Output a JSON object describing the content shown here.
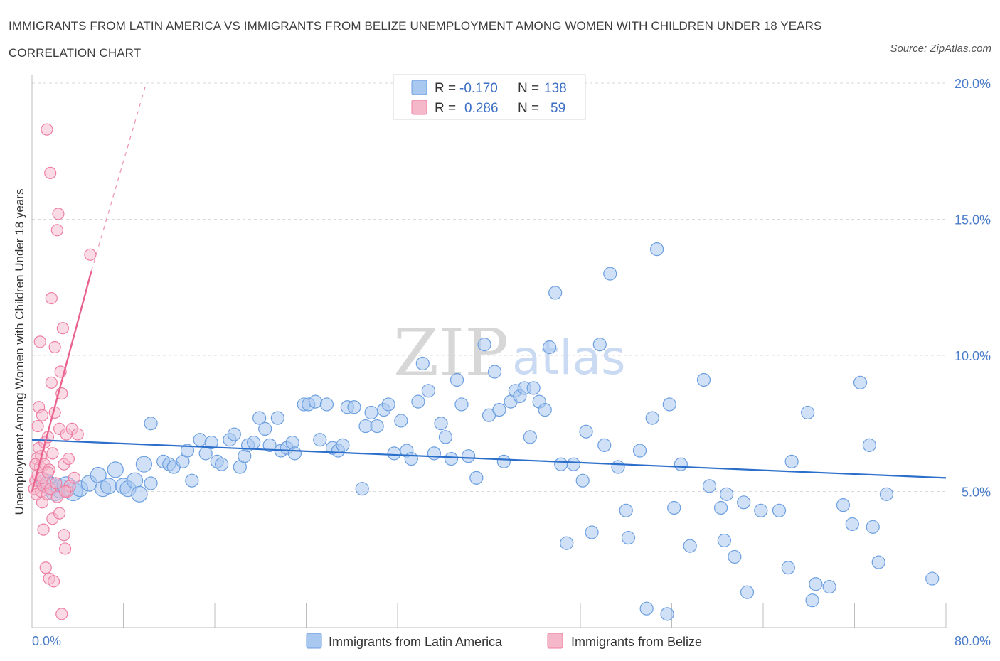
{
  "title": "IMMIGRANTS FROM LATIN AMERICA VS IMMIGRANTS FROM BELIZE UNEMPLOYMENT AMONG WOMEN WITH CHILDREN UNDER 18 YEARS CORRELATION CHART",
  "source": "Source: ZipAtlas.com",
  "watermark": {
    "zip": "ZIP",
    "atlas": "atlas"
  },
  "legend": {
    "rows": [
      {
        "r_label": "R =",
        "r_value": "-0.170",
        "n_label": "N =",
        "n_value": "138",
        "color": "#a9c8f0"
      },
      {
        "r_label": "R =",
        "r_value": "0.286",
        "n_label": "N =",
        "n_value": "59",
        "color": "#f5b8cb"
      }
    ]
  },
  "bottom_legend": [
    "Immigrants from Latin America",
    "Immigrants from Belize"
  ],
  "colors": {
    "blue_fill": "#a9c8f0",
    "blue_stroke": "#6c9fe0",
    "blue_line": "#2c6fcb",
    "pink_fill": "#f5b8cb",
    "pink_stroke": "#ee7fa2",
    "pink_line": "#e8628d",
    "grid": "#d9d9d9",
    "axis_text": "#4a7cc9"
  },
  "chart_data": {
    "type": "scatter",
    "title": "IMMIGRANTS FROM LATIN AMERICA VS IMMIGRANTS FROM BELIZE UNEMPLOYMENT AMONG WOMEN WITH CHILDREN UNDER 18 YEARS CORRELATION CHART",
    "xlabel": "",
    "ylabel": "Unemployment Among Women with Children Under 18 years",
    "xlim": [
      0,
      80
    ],
    "ylim": [
      0,
      20
    ],
    "x_tick_labels": [
      "0.0%",
      "80.0%"
    ],
    "y_ticks": [
      5,
      10,
      15,
      20
    ],
    "y_tick_labels": [
      "5.0%",
      "10.0%",
      "15.0%",
      "20.0%"
    ],
    "grid": true,
    "legend_position": "top-center",
    "series": [
      {
        "name": "Immigrants from Latin America",
        "R": -0.17,
        "N": 138,
        "trend": {
          "x": [
            0,
            80
          ],
          "y": [
            6.9,
            5.5
          ],
          "style": "solid"
        },
        "points": [
          [
            1.2,
            5.3
          ],
          [
            1.6,
            5.2
          ],
          [
            2.0,
            5.0
          ],
          [
            2.5,
            5.1
          ],
          [
            3.0,
            5.2
          ],
          [
            3.6,
            5.0
          ],
          [
            4.2,
            5.1
          ],
          [
            5.0,
            5.3
          ],
          [
            5.8,
            5.6
          ],
          [
            6.2,
            5.1
          ],
          [
            6.7,
            5.2
          ],
          [
            7.3,
            5.8
          ],
          [
            8.0,
            5.2
          ],
          [
            8.4,
            5.1
          ],
          [
            9.0,
            5.4
          ],
          [
            9.4,
            4.9
          ],
          [
            9.8,
            6.0
          ],
          [
            10.4,
            5.3
          ],
          [
            10.4,
            7.5
          ],
          [
            11.5,
            6.1
          ],
          [
            12.0,
            6.0
          ],
          [
            12.4,
            5.9
          ],
          [
            13.2,
            6.1
          ],
          [
            13.6,
            6.5
          ],
          [
            14.0,
            5.4
          ],
          [
            14.7,
            6.9
          ],
          [
            15.2,
            6.4
          ],
          [
            15.7,
            6.8
          ],
          [
            16.2,
            6.1
          ],
          [
            16.6,
            6.0
          ],
          [
            17.3,
            6.9
          ],
          [
            17.7,
            7.1
          ],
          [
            18.2,
            5.9
          ],
          [
            18.6,
            6.3
          ],
          [
            18.9,
            6.7
          ],
          [
            19.4,
            6.8
          ],
          [
            19.9,
            7.7
          ],
          [
            20.4,
            7.3
          ],
          [
            20.8,
            6.7
          ],
          [
            21.5,
            7.7
          ],
          [
            21.8,
            6.5
          ],
          [
            22.3,
            6.6
          ],
          [
            22.8,
            6.8
          ],
          [
            23.0,
            6.4
          ],
          [
            23.8,
            8.2
          ],
          [
            24.2,
            8.2
          ],
          [
            24.8,
            8.3
          ],
          [
            25.2,
            6.9
          ],
          [
            25.8,
            8.2
          ],
          [
            26.3,
            6.6
          ],
          [
            26.8,
            6.5
          ],
          [
            27.2,
            6.7
          ],
          [
            27.6,
            8.1
          ],
          [
            28.2,
            8.1
          ],
          [
            28.9,
            5.1
          ],
          [
            29.2,
            7.4
          ],
          [
            29.7,
            7.9
          ],
          [
            30.2,
            7.4
          ],
          [
            30.8,
            8.0
          ],
          [
            31.2,
            8.2
          ],
          [
            31.7,
            6.4
          ],
          [
            32.3,
            7.6
          ],
          [
            32.8,
            6.5
          ],
          [
            33.2,
            6.2
          ],
          [
            33.8,
            8.3
          ],
          [
            34.2,
            9.7
          ],
          [
            34.7,
            8.7
          ],
          [
            35.2,
            6.4
          ],
          [
            35.8,
            7.5
          ],
          [
            36.2,
            7.0
          ],
          [
            36.7,
            6.2
          ],
          [
            37.2,
            9.1
          ],
          [
            37.6,
            8.2
          ],
          [
            38.2,
            6.3
          ],
          [
            38.9,
            5.5
          ],
          [
            39.6,
            10.4
          ],
          [
            40.0,
            7.8
          ],
          [
            40.5,
            9.4
          ],
          [
            40.9,
            8.0
          ],
          [
            41.3,
            6.1
          ],
          [
            41.9,
            8.3
          ],
          [
            42.3,
            8.7
          ],
          [
            42.7,
            8.5
          ],
          [
            43.1,
            8.8
          ],
          [
            43.6,
            7.0
          ],
          [
            43.9,
            8.8
          ],
          [
            44.4,
            8.3
          ],
          [
            44.9,
            8.0
          ],
          [
            45.3,
            10.3
          ],
          [
            45.8,
            12.3
          ],
          [
            46.3,
            6.0
          ],
          [
            46.8,
            3.1
          ],
          [
            47.4,
            6.0
          ],
          [
            48.2,
            5.4
          ],
          [
            48.5,
            7.2
          ],
          [
            49.0,
            3.5
          ],
          [
            49.7,
            10.4
          ],
          [
            50.1,
            6.7
          ],
          [
            50.6,
            13.0
          ],
          [
            51.3,
            5.9
          ],
          [
            52.0,
            4.3
          ],
          [
            52.2,
            3.3
          ],
          [
            53.2,
            6.5
          ],
          [
            53.8,
            0.7
          ],
          [
            54.3,
            7.7
          ],
          [
            54.7,
            13.9
          ],
          [
            55.6,
            0.5
          ],
          [
            55.8,
            8.2
          ],
          [
            56.2,
            4.4
          ],
          [
            56.8,
            6.0
          ],
          [
            57.6,
            3.0
          ],
          [
            58.8,
            9.1
          ],
          [
            59.3,
            5.2
          ],
          [
            60.3,
            4.4
          ],
          [
            60.6,
            3.2
          ],
          [
            60.8,
            4.9
          ],
          [
            61.5,
            2.6
          ],
          [
            62.3,
            4.6
          ],
          [
            62.6,
            1.3
          ],
          [
            63.8,
            4.3
          ],
          [
            65.4,
            4.3
          ],
          [
            66.2,
            2.2
          ],
          [
            66.5,
            6.1
          ],
          [
            67.9,
            7.9
          ],
          [
            68.3,
            1.0
          ],
          [
            68.6,
            1.6
          ],
          [
            69.8,
            1.5
          ],
          [
            71.0,
            4.5
          ],
          [
            71.8,
            3.8
          ],
          [
            72.5,
            9.0
          ],
          [
            73.3,
            6.7
          ],
          [
            73.6,
            3.7
          ],
          [
            74.1,
            2.4
          ],
          [
            74.8,
            4.9
          ],
          [
            78.8,
            1.8
          ]
        ]
      },
      {
        "name": "Immigrants from Belize",
        "R": 0.286,
        "N": 59,
        "trend": {
          "x": [
            0,
            5.2
          ],
          "y": [
            5.0,
            13.1
          ],
          "style": "solid",
          "extension_to": [
            10.0,
            20.0
          ],
          "extension_style": "dashed"
        },
        "points": [
          [
            0.2,
            5.1
          ],
          [
            0.3,
            5.4
          ],
          [
            0.4,
            4.9
          ],
          [
            0.4,
            6.2
          ],
          [
            0.5,
            5.6
          ],
          [
            0.5,
            7.4
          ],
          [
            0.6,
            6.6
          ],
          [
            0.6,
            8.1
          ],
          [
            0.7,
            5.9
          ],
          [
            0.7,
            10.5
          ],
          [
            0.8,
            5.0
          ],
          [
            0.8,
            6.3
          ],
          [
            0.9,
            4.6
          ],
          [
            0.9,
            7.8
          ],
          [
            1.0,
            5.2
          ],
          [
            1.0,
            3.6
          ],
          [
            1.1,
            6.0
          ],
          [
            1.1,
            6.8
          ],
          [
            1.2,
            5.3
          ],
          [
            1.2,
            2.2
          ],
          [
            1.3,
            18.3
          ],
          [
            1.3,
            4.9
          ],
          [
            1.4,
            7.0
          ],
          [
            1.5,
            5.8
          ],
          [
            1.5,
            1.8
          ],
          [
            1.6,
            16.7
          ],
          [
            1.6,
            5.1
          ],
          [
            1.7,
            9.0
          ],
          [
            1.7,
            12.1
          ],
          [
            1.8,
            6.4
          ],
          [
            1.8,
            4.0
          ],
          [
            1.9,
            1.7
          ],
          [
            2.0,
            7.9
          ],
          [
            2.0,
            10.3
          ],
          [
            2.1,
            5.3
          ],
          [
            2.2,
            14.6
          ],
          [
            2.2,
            4.8
          ],
          [
            2.3,
            15.2
          ],
          [
            2.4,
            7.3
          ],
          [
            2.4,
            4.2
          ],
          [
            2.5,
            9.4
          ],
          [
            2.6,
            8.6
          ],
          [
            2.6,
            0.5
          ],
          [
            2.7,
            11.0
          ],
          [
            2.8,
            3.4
          ],
          [
            2.8,
            6.0
          ],
          [
            2.9,
            2.9
          ],
          [
            3.0,
            7.1
          ],
          [
            3.1,
            5.0
          ],
          [
            3.2,
            6.2
          ],
          [
            3.3,
            5.2
          ],
          [
            3.5,
            7.3
          ],
          [
            3.7,
            5.5
          ],
          [
            0.3,
            6.0
          ],
          [
            0.9,
            5.5
          ],
          [
            1.4,
            5.7
          ],
          [
            2.9,
            5.0
          ],
          [
            4.0,
            7.1
          ],
          [
            5.1,
            13.7
          ]
        ]
      }
    ]
  }
}
